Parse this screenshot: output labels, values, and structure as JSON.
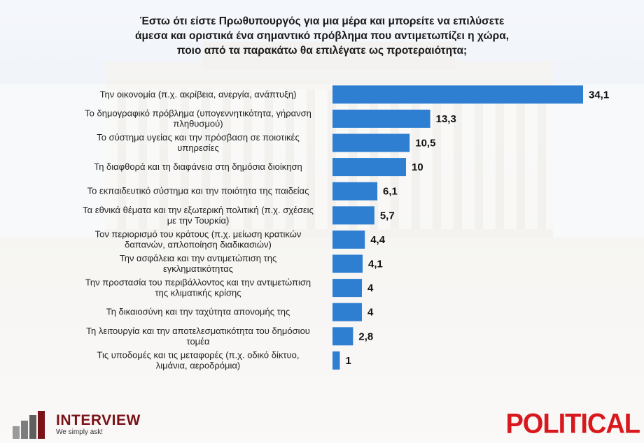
{
  "title": "Έστω ότι είστε Πρωθυπουργός για μια μέρα και μπορείτε να επιλύσετε άμεσα και οριστικά ένα σημαντικό πρόβλημα που αντιμετωπίζει η χώρα, ποιο από τα παρακάτω θα επιλέγατε ως προτεραιότητα;",
  "title_lines": [
    "Έστω ότι είστε Πρωθυπουργός για μια μέρα και μπορείτε να επιλύσετε",
    "άμεσα και οριστικά ένα σημαντικό πρόβλημα που αντιμετωπίζει η χώρα,",
    "ποιο από τα παρακάτω θα επιλέγατε ως προτεραιότητα;"
  ],
  "chart_data": {
    "type": "bar",
    "orientation": "horizontal",
    "categories": [
      "Την οικονομία (π.χ. ακρίβεια, ανεργία, ανάπτυξη)",
      "Το δημογραφικό πρόβλημα (υπογεννητικότητα, γήρανση πληθυσμού)",
      "Το σύστημα υγείας και την πρόσβαση σε ποιοτικές υπηρεσίες",
      "Τη διαφθορά και τη διαφάνεια στη δημόσια διοίκηση",
      "Το εκπαιδευτικό σύστημα και την ποιότητα της παιδείας",
      "Τα εθνικά θέματα και την εξωτερική πολιτική (π.χ. σχέσεις με την Τουρκία)",
      "Τον περιορισμό του κράτους (π.χ. μείωση κρατικών δαπανών, απλοποίηση διαδικασιών)",
      "Την ασφάλεια και την αντιμετώπιση της εγκληματικότητας",
      "Την προστασία του περιβάλλοντος και την αντιμετώπιση της κλιματικής κρίσης",
      "Τη δικαιοσύνη και την ταχύτητα απονομής της",
      "Τη λειτουργία και την αποτελεσματικότητα του δημόσιου τομέα",
      "Τις υποδομές και τις μεταφορές (π.χ. οδικό δίκτυο, λιμάνια, αεροδρόμια)"
    ],
    "label_lines": [
      [
        "Την οικονομία (π.χ. ακρίβεια, ανεργία, ανάπτυξη)"
      ],
      [
        "Το δημογραφικό πρόβλημα (υπογεννητικότητα, γήρανση",
        "πληθυσμού)"
      ],
      [
        "Το σύστημα υγείας και την πρόσβαση σε ποιοτικές",
        "υπηρεσίες"
      ],
      [
        "Τη διαφθορά και τη διαφάνεια στη δημόσια διοίκηση"
      ],
      [
        "Το εκπαιδευτικό σύστημα και την ποιότητα της παιδείας"
      ],
      [
        "Τα εθνικά θέματα και την εξωτερική πολιτική (π.χ. σχέσεις",
        "με την Τουρκία)"
      ],
      [
        "Τον περιορισμό του κράτους (π.χ. μείωση κρατικών",
        "δαπανών, απλοποίηση διαδικασιών)"
      ],
      [
        "Την ασφάλεια και την αντιμετώπιση της",
        "εγκληματικότητας"
      ],
      [
        "Την προστασία του περιβάλλοντος και την αντιμετώπιση",
        "της κλιματικής κρίσης"
      ],
      [
        "Τη δικαιοσύνη και την ταχύτητα απονομής της"
      ],
      [
        "Τη λειτουργία και την αποτελεσματικότητα του δημόσιου",
        "τομέα"
      ],
      [
        "Τις υποδομές και τις μεταφορές (π.χ. οδικό δίκτυο,",
        "λιμάνια, αεροδρόμια)"
      ]
    ],
    "values": [
      34.1,
      13.3,
      10.5,
      10,
      6.1,
      5.7,
      4.4,
      4.1,
      4,
      4,
      2.8,
      1
    ],
    "value_labels": [
      "34,1",
      "13,3",
      "10,5",
      "10",
      "6,1",
      "5,7",
      "4,4",
      "4,1",
      "4",
      "4",
      "2,8",
      "1"
    ],
    "xlim": [
      0,
      34.1
    ],
    "bar_color": "#2e7fd1",
    "grid": false,
    "legend": "none"
  },
  "logos": {
    "interview_name": "INTERVIEW",
    "interview_tagline": "We simply ask!",
    "political": "POLITICAL",
    "interview_color": "#7a1218",
    "political_color": "#d8181c"
  }
}
